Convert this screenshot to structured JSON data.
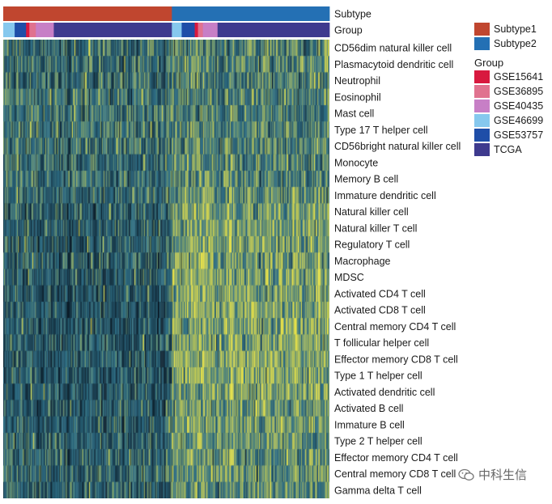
{
  "chart_data": {
    "type": "heatmap",
    "title": "",
    "annotation_tracks": [
      {
        "label": "Subtype",
        "segments": [
          {
            "name": "Subtype1",
            "fraction": 0.517
          },
          {
            "name": "Subtype2",
            "fraction": 0.483
          }
        ]
      },
      {
        "label": "Group",
        "segments": [
          {
            "name": "GSE46699",
            "fraction": 0.035
          },
          {
            "name": "GSE53757",
            "fraction": 0.035
          },
          {
            "name": "GSE15641",
            "fraction": 0.01
          },
          {
            "name": "GSE36895",
            "fraction": 0.02
          },
          {
            "name": "GSE40435",
            "fraction": 0.055
          },
          {
            "name": "TCGA",
            "fraction": 0.362
          },
          {
            "name": "GSE46699",
            "fraction": 0.03
          },
          {
            "name": "GSE53757",
            "fraction": 0.04
          },
          {
            "name": "GSE15641",
            "fraction": 0.01
          },
          {
            "name": "GSE36895",
            "fraction": 0.015
          },
          {
            "name": "GSE40435",
            "fraction": 0.045
          },
          {
            "name": "TCGA",
            "fraction": 0.343
          }
        ]
      }
    ],
    "legend": {
      "placement": "right",
      "groups": [
        {
          "title": "",
          "items": [
            {
              "name": "Subtype1",
              "color": "#C0462F"
            },
            {
              "name": "Subtype2",
              "color": "#2470B4"
            }
          ]
        },
        {
          "title": "Group",
          "items": [
            {
              "name": "GSE15641",
              "color": "#D8193F"
            },
            {
              "name": "GSE36895",
              "color": "#E0728F"
            },
            {
              "name": "GSE40435",
              "color": "#C77FC6"
            },
            {
              "name": "GSE46699",
              "color": "#86C8EE"
            },
            {
              "name": "GSE53757",
              "color": "#1F4EA8"
            },
            {
              "name": "TCGA",
              "color": "#3E3A8E"
            }
          ]
        }
      ]
    },
    "color_scale": {
      "low": "#0B1A26",
      "mid": "#2F6F86",
      "high": "#E8E24A"
    },
    "rows": [
      {
        "name": "CD56dim natural killer cell",
        "s1": 0.45,
        "s2": 0.55
      },
      {
        "name": "Plasmacytoid dendritic cell",
        "s1": 0.45,
        "s2": 0.55
      },
      {
        "name": "Neutrophil",
        "s1": 0.45,
        "s2": 0.55
      },
      {
        "name": "Eosinophil",
        "s1": 0.47,
        "s2": 0.52
      },
      {
        "name": "Mast cell",
        "s1": 0.48,
        "s2": 0.52
      },
      {
        "name": "Type 17 T helper cell",
        "s1": 0.46,
        "s2": 0.55
      },
      {
        "name": "CD56bright natural killer cell",
        "s1": 0.46,
        "s2": 0.55
      },
      {
        "name": "Monocyte",
        "s1": 0.45,
        "s2": 0.58
      },
      {
        "name": "Memory B cell",
        "s1": 0.45,
        "s2": 0.57
      },
      {
        "name": "Immature dendritic cell",
        "s1": 0.42,
        "s2": 0.6
      },
      {
        "name": "Natural killer cell",
        "s1": 0.38,
        "s2": 0.65
      },
      {
        "name": "Natural killer T cell",
        "s1": 0.36,
        "s2": 0.68
      },
      {
        "name": "Regulatory T cell",
        "s1": 0.36,
        "s2": 0.68
      },
      {
        "name": "Macrophage",
        "s1": 0.37,
        "s2": 0.68
      },
      {
        "name": "MDSC",
        "s1": 0.36,
        "s2": 0.7
      },
      {
        "name": "Activated CD4 T cell",
        "s1": 0.34,
        "s2": 0.7
      },
      {
        "name": "Activated CD8 T cell",
        "s1": 0.34,
        "s2": 0.72
      },
      {
        "name": "Central memory CD4 T cell",
        "s1": 0.35,
        "s2": 0.7
      },
      {
        "name": "T follicular helper cell",
        "s1": 0.34,
        "s2": 0.72
      },
      {
        "name": "Effector memory CD8 T cell",
        "s1": 0.34,
        "s2": 0.72
      },
      {
        "name": "Type 1 T helper cell",
        "s1": 0.34,
        "s2": 0.72
      },
      {
        "name": "Activated dendritic cell",
        "s1": 0.35,
        "s2": 0.7
      },
      {
        "name": "Activated B cell",
        "s1": 0.36,
        "s2": 0.68
      },
      {
        "name": "Immature B cell",
        "s1": 0.36,
        "s2": 0.68
      },
      {
        "name": "Type 2 T helper cell",
        "s1": 0.38,
        "s2": 0.64
      },
      {
        "name": "Effector memory CD4 T cell",
        "s1": 0.4,
        "s2": 0.62
      },
      {
        "name": "Central memory CD8 T cell",
        "s1": 0.4,
        "s2": 0.62
      },
      {
        "name": "Gamma delta T cell",
        "s1": 0.4,
        "s2": 0.62
      }
    ]
  },
  "watermark": {
    "text": "中科生信",
    "icon": "wechat-icon"
  }
}
